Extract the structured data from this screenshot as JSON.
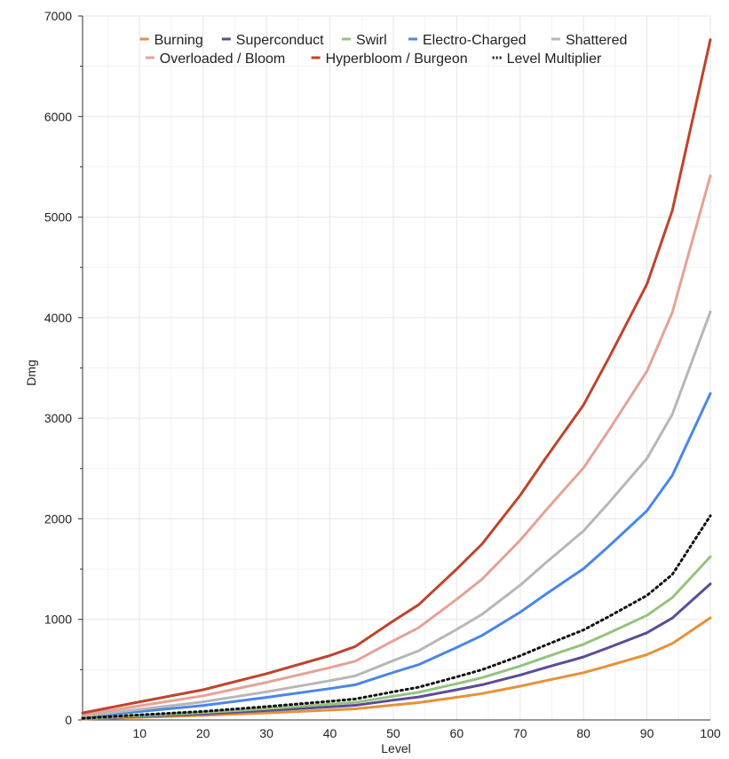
{
  "chart_data": {
    "type": "line",
    "title": "",
    "xlabel": "Level",
    "ylabel": "Dmg",
    "xlim": [
      1,
      100
    ],
    "ylim": [
      0,
      7000
    ],
    "x_ticks": [
      10,
      20,
      30,
      40,
      50,
      60,
      70,
      80,
      90,
      100
    ],
    "y_ticks": [
      0,
      1000,
      2000,
      3000,
      4000,
      5000,
      6000,
      7000
    ],
    "grid": true,
    "legend_position": "top",
    "x": [
      1,
      10,
      20,
      30,
      40,
      44,
      50,
      54,
      60,
      64,
      70,
      74,
      80,
      84,
      90,
      94,
      100
    ],
    "series": [
      {
        "name": "Burning",
        "color": "#e69138",
        "dash": false,
        "values": [
          9,
          26,
          45,
          70,
          98,
          110,
          148,
          172,
          225,
          262,
          335,
          390,
          470,
          540,
          650,
          760,
          1015
        ]
      },
      {
        "name": "Superconduct",
        "color": "#5c4b99",
        "dash": false,
        "values": [
          12,
          35,
          60,
          94,
          130,
          146,
          197,
          229,
          300,
          350,
          447,
          520,
          627,
          720,
          867,
          1013,
          1353
        ]
      },
      {
        "name": "Swirl",
        "color": "#93c47d",
        "dash": false,
        "values": [
          14,
          42,
          72,
          112,
          156,
          175,
          236,
          275,
          360,
          420,
          536,
          624,
          752,
          864,
          1040,
          1216,
          1623
        ]
      },
      {
        "name": "Electro-Charged",
        "color": "#4a86e8",
        "dash": false,
        "values": [
          29,
          84,
          144,
          224,
          312,
          350,
          472,
          550,
          720,
          840,
          1072,
          1248,
          1504,
          1728,
          2080,
          2432,
          3247
        ]
      },
      {
        "name": "Shattered",
        "color": "#b7b7b7",
        "dash": false,
        "values": [
          36,
          105,
          180,
          280,
          390,
          438,
          590,
          688,
          900,
          1050,
          1340,
          1560,
          1880,
          2160,
          2600,
          3040,
          4058
        ]
      },
      {
        "name": "Overloaded / Bloom",
        "color": "#e6a295",
        "dash": false,
        "values": [
          49,
          140,
          240,
          373,
          520,
          584,
          787,
          917,
          1200,
          1400,
          1787,
          2080,
          2507,
          2880,
          3467,
          4053,
          5411
        ]
      },
      {
        "name": "Hyperbloom / Burgeon",
        "color": "#c0432b",
        "dash": false,
        "values": [
          70,
          180,
          300,
          460,
          640,
          730,
          984,
          1146,
          1500,
          1750,
          2233,
          2600,
          3133,
          3600,
          4333,
          5067,
          6764
        ]
      },
      {
        "name": "Level Multiplier",
        "color": "#111111",
        "dash": true,
        "values": [
          17,
          50,
          85,
          132,
          185,
          208,
          280,
          326,
          428,
          500,
          638,
          743,
          895,
          1028,
          1238,
          1447,
          2030
        ]
      }
    ]
  }
}
